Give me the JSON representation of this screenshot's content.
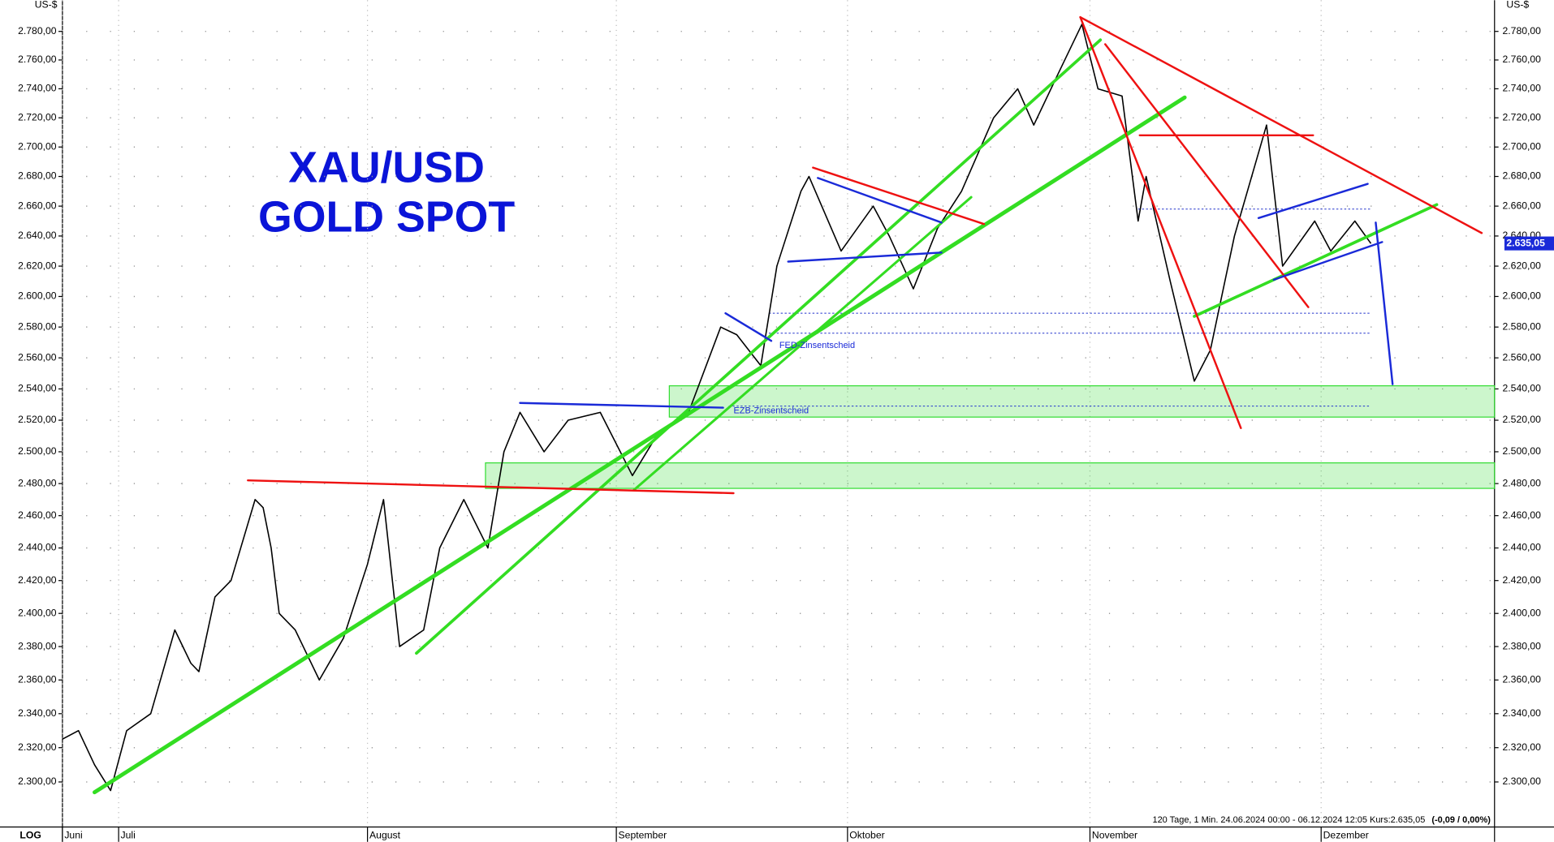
{
  "chart_data": {
    "type": "line",
    "title": "XAU/USD",
    "subtitle": "GOLD SPOT",
    "y_unit": "US-$",
    "scale_label": "LOG",
    "log_scale": true,
    "grid": true,
    "footer": "120 Tage, 1 Min. 24.06.2024 00:00 - 06.12.2024 12:05  Kurs:2.635,05",
    "footer_change": "(-0,09 / 0,00%)",
    "last_price": {
      "value": 2635.05,
      "label": "2.635,05"
    },
    "xlim": [
      0,
      178.4
    ],
    "xticks": [
      {
        "value": 0,
        "label": "Juni"
      },
      {
        "value": 7,
        "label": "Juli"
      },
      {
        "value": 38,
        "label": "August"
      },
      {
        "value": 69,
        "label": "September"
      },
      {
        "value": 97.8,
        "label": "Oktober"
      },
      {
        "value": 128,
        "label": "November"
      },
      {
        "value": 156.8,
        "label": "Dezember"
      }
    ],
    "ylim": [
      2274,
      2802
    ],
    "yticks": [
      {
        "value": 2300,
        "label": "2.300,00"
      },
      {
        "value": 2320,
        "label": "2.320,00"
      },
      {
        "value": 2340,
        "label": "2.340,00"
      },
      {
        "value": 2360,
        "label": "2.360,00"
      },
      {
        "value": 2380,
        "label": "2.380,00"
      },
      {
        "value": 2400,
        "label": "2.400,00"
      },
      {
        "value": 2420,
        "label": "2.420,00"
      },
      {
        "value": 2440,
        "label": "2.440,00"
      },
      {
        "value": 2460,
        "label": "2.460,00"
      },
      {
        "value": 2480,
        "label": "2.480,00"
      },
      {
        "value": 2500,
        "label": "2.500,00"
      },
      {
        "value": 2520,
        "label": "2.520,00"
      },
      {
        "value": 2540,
        "label": "2.540,00"
      },
      {
        "value": 2560,
        "label": "2.560,00"
      },
      {
        "value": 2580,
        "label": "2.580,00"
      },
      {
        "value": 2600,
        "label": "2.600,00"
      },
      {
        "value": 2620,
        "label": "2.620,00"
      },
      {
        "value": 2640,
        "label": "2.640,00"
      },
      {
        "value": 2660,
        "label": "2.660,00"
      },
      {
        "value": 2680,
        "label": "2.680,00"
      },
      {
        "value": 2700,
        "label": "2.700,00"
      },
      {
        "value": 2720,
        "label": "2.720,00"
      },
      {
        "value": 2740,
        "label": "2.740,00"
      },
      {
        "value": 2760,
        "label": "2.760,00"
      },
      {
        "value": 2780,
        "label": "2.780,00"
      }
    ],
    "x": [
      0,
      2,
      4,
      6,
      8,
      11,
      14,
      16,
      17,
      19,
      21,
      24,
      25,
      26,
      27,
      29,
      32,
      35,
      38,
      40,
      42,
      45,
      47,
      50,
      53,
      55,
      57,
      60,
      63,
      67,
      71,
      74,
      78,
      82,
      84,
      87,
      89,
      92,
      93,
      97,
      101,
      103,
      106,
      109,
      112,
      116,
      119,
      121,
      124,
      127,
      129,
      132,
      134,
      135,
      138,
      141,
      143,
      146,
      150,
      152,
      156,
      158,
      161,
      163
    ],
    "series": [
      {
        "name": "XAU/USD",
        "color": "#000000",
        "values": [
          2325,
          2330,
          2310,
          2295,
          2330,
          2340,
          2390,
          2370,
          2365,
          2410,
          2420,
          2470,
          2465,
          2440,
          2400,
          2390,
          2360,
          2385,
          2430,
          2470,
          2380,
          2390,
          2440,
          2470,
          2440,
          2500,
          2525,
          2500,
          2520,
          2525,
          2485,
          2510,
          2525,
          2580,
          2575,
          2555,
          2620,
          2670,
          2680,
          2630,
          2660,
          2640,
          2605,
          2645,
          2670,
          2720,
          2740,
          2715,
          2750,
          2785,
          2740,
          2735,
          2650,
          2680,
          2610,
          2545,
          2565,
          2640,
          2715,
          2620,
          2650,
          2630,
          2650,
          2635
        ]
      }
    ],
    "zones": [
      {
        "color": "#33dd33",
        "x": [
          75.6,
          178.4
        ],
        "y": [
          2522,
          2542
        ]
      },
      {
        "color": "#33dd33",
        "x": [
          52.7,
          178.4
        ],
        "y": [
          2477,
          2493
        ]
      }
    ],
    "levels": [
      {
        "color": "#2233cc",
        "x": [
          134,
          163
        ],
        "y": 2658
      },
      {
        "color": "#2233cc",
        "x": [
          88,
          163
        ],
        "y": 2589
      },
      {
        "color": "#2233cc",
        "x": [
          88,
          163
        ],
        "y": 2576
      },
      {
        "color": "#2233cc",
        "x": [
          83,
          163
        ],
        "y": 2529
      }
    ],
    "trendlines": [
      {
        "color": "#33dd22",
        "width": 4,
        "x": [
          4,
          139.8
        ],
        "y": [
          2294,
          2734
        ]
      },
      {
        "color": "#33dd22",
        "width": 3,
        "x": [
          44.1,
          129.3
        ],
        "y": [
          2376,
          2774
        ]
      },
      {
        "color": "#33dd22",
        "width": 2.5,
        "x": [
          71.2,
          113.2
        ],
        "y": [
          2476,
          2666
        ]
      },
      {
        "color": "#33dd22",
        "width": 3,
        "x": [
          141,
          171.2
        ],
        "y": [
          2587,
          2661
        ]
      },
      {
        "color": "#ee1111",
        "width": 2,
        "x": [
          23.1,
          83.6
        ],
        "y": [
          2482,
          2474
        ]
      },
      {
        "color": "#ee1111",
        "width": 2,
        "x": [
          126.8,
          176.8
        ],
        "y": [
          2790,
          2642
        ]
      },
      {
        "color": "#ee1111",
        "width": 2,
        "x": [
          126.8,
          146.8
        ],
        "y": [
          2790,
          2515
        ]
      },
      {
        "color": "#ee1111",
        "width": 2,
        "x": [
          129.9,
          155.2
        ],
        "y": [
          2771,
          2593
        ]
      },
      {
        "color": "#ee1111",
        "width": 2,
        "x": [
          134.2,
          155.8
        ],
        "y": [
          2708,
          2708
        ]
      },
      {
        "color": "#ee1111",
        "width": 2,
        "x": [
          93.5,
          114.8
        ],
        "y": [
          2686,
          2648
        ]
      },
      {
        "color": "#1a2ad8",
        "width": 2,
        "x": [
          57,
          82.3
        ],
        "y": [
          2531,
          2528
        ]
      },
      {
        "color": "#1a2ad8",
        "width": 2,
        "x": [
          90.4,
          109.5
        ],
        "y": [
          2623,
          2629
        ]
      },
      {
        "color": "#1a2ad8",
        "width": 2,
        "x": [
          94.1,
          109.5
        ],
        "y": [
          2679,
          2649
        ]
      },
      {
        "color": "#1a2ad8",
        "width": 2,
        "x": [
          150.9,
          164.4
        ],
        "y": [
          2611,
          2636
        ]
      },
      {
        "color": "#1a2ad8",
        "width": 2,
        "x": [
          149,
          162.6
        ],
        "y": [
          2652,
          2675
        ]
      },
      {
        "color": "#1a2ad8",
        "width": 2,
        "x": [
          163.6,
          165.7
        ],
        "y": [
          2649,
          2543
        ]
      },
      {
        "color": "#1a2ad8",
        "width": 2,
        "x": [
          82.6,
          88.3
        ],
        "y": [
          2589,
          2571
        ]
      }
    ],
    "annotations": [
      {
        "text": "FED-Zinsentscheid",
        "x": 89.3,
        "y": 2568
      },
      {
        "text": "EZB-Zinsentscheid",
        "x": 83.6,
        "y": 2526
      }
    ]
  }
}
